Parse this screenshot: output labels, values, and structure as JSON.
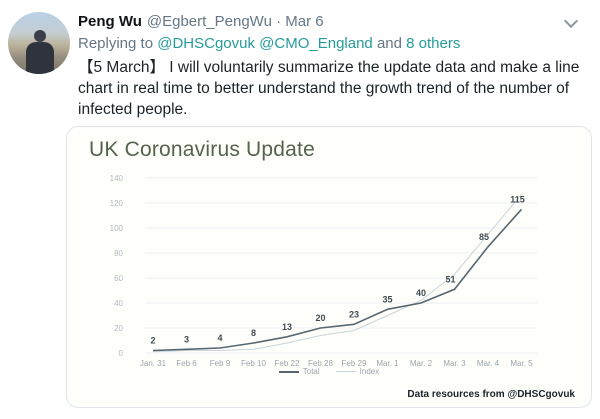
{
  "tweet": {
    "author": {
      "name": "Peng Wu",
      "handle": "@Egbert_PengWu",
      "separator": "·",
      "date": "Mar 6"
    },
    "replying": {
      "prefix": "Replying to",
      "mention1": "@DHSCgovuk",
      "mention2": "@CMO_England",
      "and": "and",
      "others": "8 others"
    },
    "body": "【5 March】 I will voluntarily summarize the update data and make a line chart in real time to better understand the growth trend of the number of infected people."
  },
  "chart": {
    "footer": "Data resources from @DHSCgovuk"
  },
  "chart_data": {
    "type": "line",
    "title": "UK Coronavirus Update",
    "categories": [
      "Jan. 31",
      "Feb 6",
      "Feb 9",
      "Feb 10",
      "Feb 22",
      "Feb 28",
      "Feb 29",
      "Mar. 1",
      "Mar. 2",
      "Mar. 3",
      "Mar. 4",
      "Mar. 5"
    ],
    "series": [
      {
        "name": "Total",
        "values": [
          2,
          3,
          4,
          8,
          13,
          20,
          23,
          35,
          40,
          51,
          85,
          115
        ],
        "color": "#57666f",
        "labeled": true
      },
      {
        "name": "Index",
        "values": [
          1,
          2,
          2,
          3,
          8,
          14,
          18,
          30,
          42,
          63,
          95,
          127
        ],
        "color": "#c9d3d8",
        "labeled": false
      }
    ],
    "ylim": [
      0,
      140
    ],
    "ytick_step": 20,
    "grid": true,
    "legend_position": "bottom",
    "xlabel": "",
    "ylabel": ""
  },
  "colors": {
    "link_teal": "#269b9b",
    "title_green": "#55634d",
    "total_line": "#57666f",
    "index_line": "#c9d3d8",
    "grid": "#eceff1",
    "tick_label": "#b3bac0"
  }
}
